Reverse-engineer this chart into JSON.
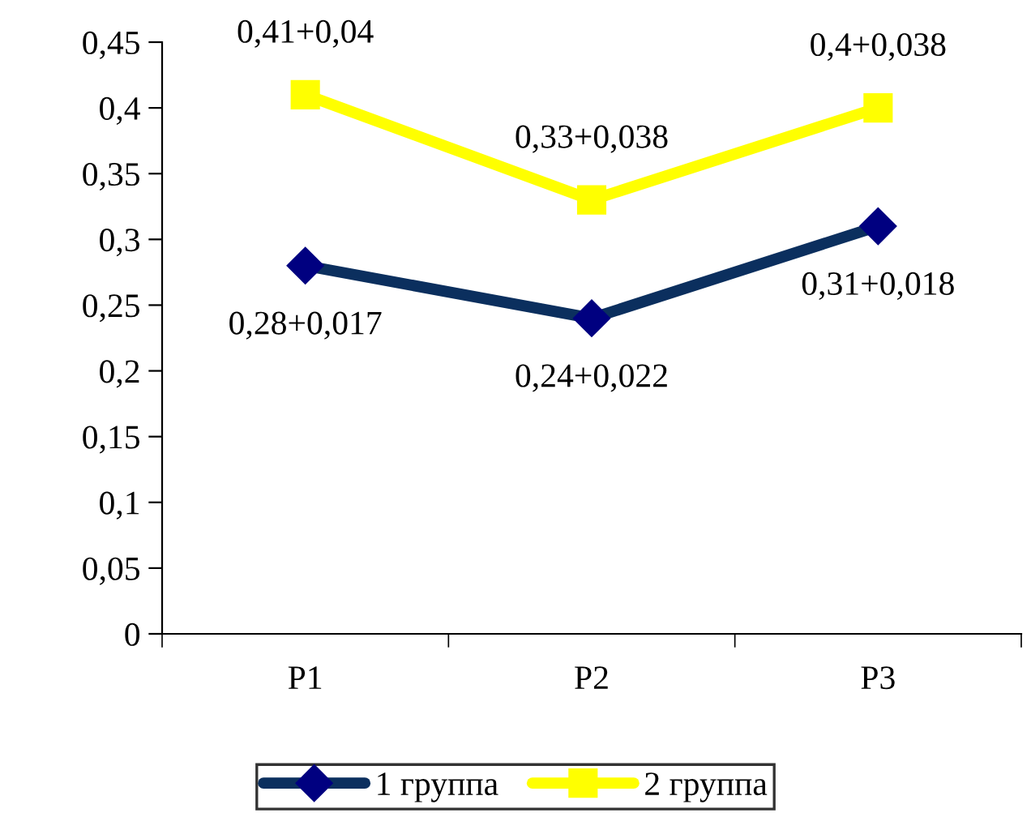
{
  "chart_data": {
    "type": "line",
    "categories": [
      "P1",
      "P2",
      "P3"
    ],
    "series": [
      {
        "name": "1 группа",
        "color": "#0b2f5e",
        "values": [
          0.28,
          0.24,
          0.31
        ],
        "value_labels": [
          "0,28+0,017",
          "0,24+0,022",
          "0,31+0,018"
        ],
        "marker": "diamond"
      },
      {
        "name": "2 группа",
        "color": "#ffff00",
        "values": [
          0.41,
          0.33,
          0.4
        ],
        "value_labels": [
          "0,41+0,04",
          "0,33+0,038",
          "0,4+0,038"
        ],
        "marker": "square"
      }
    ],
    "ylim": [
      0,
      0.45
    ],
    "yticks": [
      0,
      {
        "value": 0.05,
        "label": "0,05"
      },
      {
        "value": 0.1,
        "label": "0,1"
      },
      {
        "value": 0.15,
        "label": "0,15"
      },
      {
        "value": 0.2,
        "label": "0,2"
      },
      {
        "value": 0.25,
        "label": "0,25"
      },
      {
        "value": 0.3,
        "label": "0,3"
      },
      {
        "value": 0.35,
        "label": "0,35"
      },
      {
        "value": 0.4,
        "label": "0,4"
      },
      {
        "value": 0.45,
        "label": "0,45"
      }
    ],
    "grid": false,
    "legend": "bottom"
  }
}
